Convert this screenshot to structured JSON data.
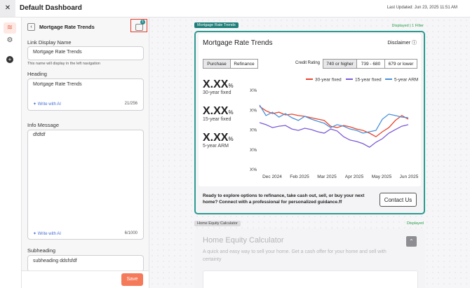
{
  "header": {
    "title": "Default Dashboard",
    "last_updated": "Last Updated: Jun 23, 2025 11:51 AM"
  },
  "editor": {
    "title": "Mortgage Rate Trends",
    "badge": "1",
    "link_label": "Link Display Name",
    "link_value": "Mortgage Rate Trends",
    "link_help": "This name will display in the left navigation",
    "heading_label": "Heading",
    "heading_value": "Mortgage Rate Trends",
    "heading_ai": "Write with AI",
    "heading_count": "21/256",
    "info_label": "Info Message",
    "info_value": "dfdfdf",
    "info_ai": "Write with AI",
    "info_count": "6/1000",
    "subheading_label": "Subheading",
    "subheading_value": "subheading ddsfsfdf",
    "save": "Save"
  },
  "widget1": {
    "tag": "Mortgage Rate Trends",
    "status": "Displayed | 1 Filter",
    "title": "Mortgage Rate Trends",
    "disclaimer": "Disclaimer",
    "tabs": [
      "Purchase",
      "Refinance"
    ],
    "credit_label": "Credit Rating",
    "credit_options": [
      "740 or higher",
      "739 - 680",
      "679 or lower"
    ],
    "stats": [
      {
        "value": "X.XX",
        "unit": "%",
        "label": "30-year fixed"
      },
      {
        "value": "X.XX",
        "unit": "%",
        "label": "15-year fixed"
      },
      {
        "value": "X.XX",
        "unit": "%",
        "label": "5-year ARM"
      }
    ],
    "cta": "Ready to explore options to refinance, take cash out, sell, or buy your next home? Connect with a professional for personalized guidance.ff",
    "button": "Contact Us"
  },
  "chart_data": {
    "type": "line",
    "x_labels": [
      "Dec 2024",
      "Feb 2025",
      "Mar 2025",
      "Apr 2025",
      "May 2025",
      "Jun 2025"
    ],
    "ylim": [
      0,
      4
    ],
    "yticks": [
      {
        "value": 4,
        "label": "X%"
      },
      {
        "value": 3,
        "label": "X%"
      },
      {
        "value": 2,
        "label": "X%"
      },
      {
        "value": 1,
        "label": "X%"
      },
      {
        "value": 0,
        "label": "X%"
      }
    ],
    "series": [
      {
        "name": "30-year fixed",
        "color": "#e8452e",
        "values": [
          3.19,
          2.97,
          2.83,
          2.9,
          2.76,
          2.8,
          2.73,
          2.69,
          2.62,
          2.55,
          2.48,
          2.19,
          2.12,
          2.23,
          2.16,
          2.05,
          1.98,
          1.84,
          1.66,
          1.91,
          2.12,
          2.48,
          2.73,
          2.55
        ]
      },
      {
        "name": "15-year fixed",
        "color": "#7b5bd6",
        "values": [
          2.37,
          2.27,
          2.12,
          2.19,
          2.23,
          2.05,
          1.98,
          2.09,
          2.02,
          1.91,
          1.84,
          2.05,
          1.95,
          1.66,
          1.49,
          1.42,
          1.31,
          1.13,
          1.38,
          1.56,
          1.84,
          2.02,
          2.19,
          2.27
        ]
      },
      {
        "name": "5-year ARM",
        "color": "#4a90d9",
        "values": [
          3.26,
          2.73,
          2.9,
          2.65,
          2.83,
          2.62,
          2.48,
          2.69,
          2.55,
          2.44,
          2.34,
          2.12,
          2.27,
          2.19,
          2.05,
          1.98,
          1.84,
          1.91,
          1.98,
          2.55,
          2.8,
          2.73,
          2.65,
          2.62
        ]
      }
    ]
  },
  "widget2": {
    "tag": "Home Equity Calculator",
    "status": "Displayed",
    "title": "Home Equity Calculator",
    "subtitle": "A quick and easy way to sell your home. Get a cash offer for your home and sell with certainty"
  }
}
